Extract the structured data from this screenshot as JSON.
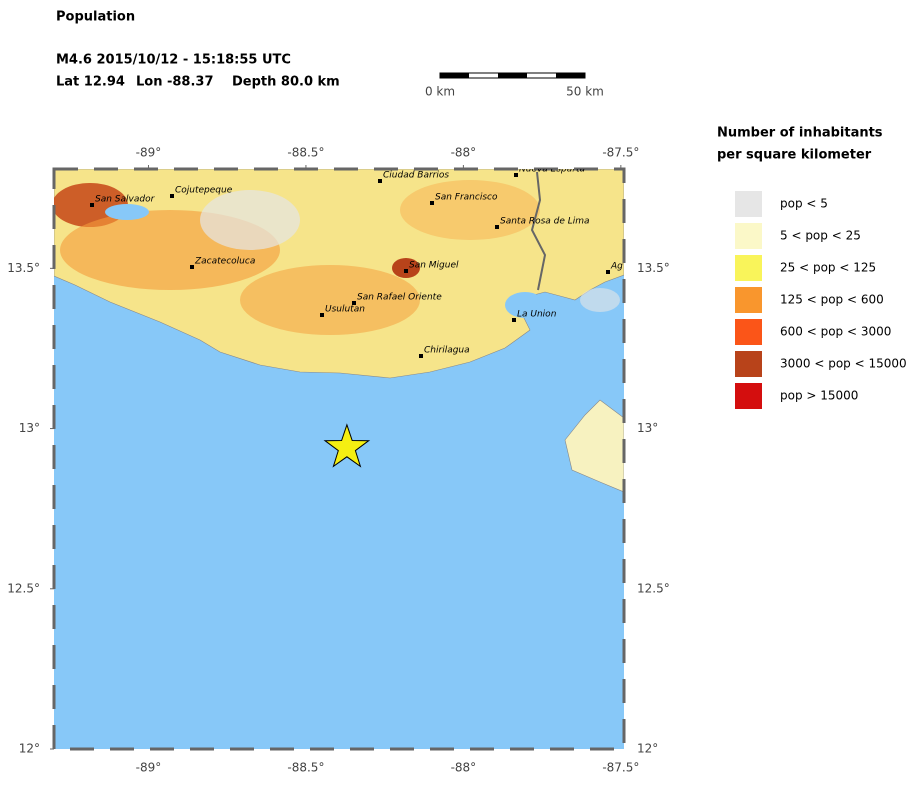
{
  "title": "Population",
  "event_line": "M4.6  2015/10/12 - 15:18:55 UTC",
  "location": {
    "lat_text": "Lat 12.94",
    "lon_text": "Lon -88.37",
    "depth_text": "Depth  80.0 km"
  },
  "scale_bar": {
    "start_label": "0 km",
    "end_label": "50 km"
  },
  "map": {
    "xlim": [
      -89.3,
      -87.49
    ],
    "ylim": [
      12,
      13.81
    ],
    "xticks": [
      {
        "value": -89,
        "label": "-89°"
      },
      {
        "value": -88.5,
        "label": "-88.5°"
      },
      {
        "value": -88,
        "label": "-88°"
      },
      {
        "value": -87.5,
        "label": "-87.5°"
      }
    ],
    "yticks": [
      {
        "value": 12,
        "label": "12°"
      },
      {
        "value": 12.5,
        "label": "12.5°"
      },
      {
        "value": 13,
        "label": "13°"
      },
      {
        "value": 13.5,
        "label": "13.5°"
      }
    ],
    "epicenter": {
      "lon": -88.37,
      "lat": 12.94
    },
    "cities": [
      "San Salvador",
      "Cojutepeque",
      "Zacatecoluca",
      "Ciudad Barrios",
      "San Francisco",
      "Nueva Esparta",
      "Santa Rosa de Lima",
      "San Miguel",
      "San Rafael Oriente",
      "Usulutan",
      "La Union",
      "Chirilagua",
      "Ag"
    ]
  },
  "legend": {
    "title_lines": [
      "Number of inhabitants",
      "per square kilometer"
    ],
    "items": [
      {
        "label": "pop < 5",
        "color": "#e6e6e6"
      },
      {
        "label": "5 < pop < 25",
        "color": "#fbf8c8"
      },
      {
        "label": "25 < pop < 125",
        "color": "#f9f45a"
      },
      {
        "label": "125 < pop < 600",
        "color": "#f9962d"
      },
      {
        "label": "600 < pop < 3000",
        "color": "#fb5518"
      },
      {
        "label": "3000 < pop < 15000",
        "color": "#b8431a"
      },
      {
        "label": "pop > 15000",
        "color": "#d40e0e"
      }
    ]
  }
}
